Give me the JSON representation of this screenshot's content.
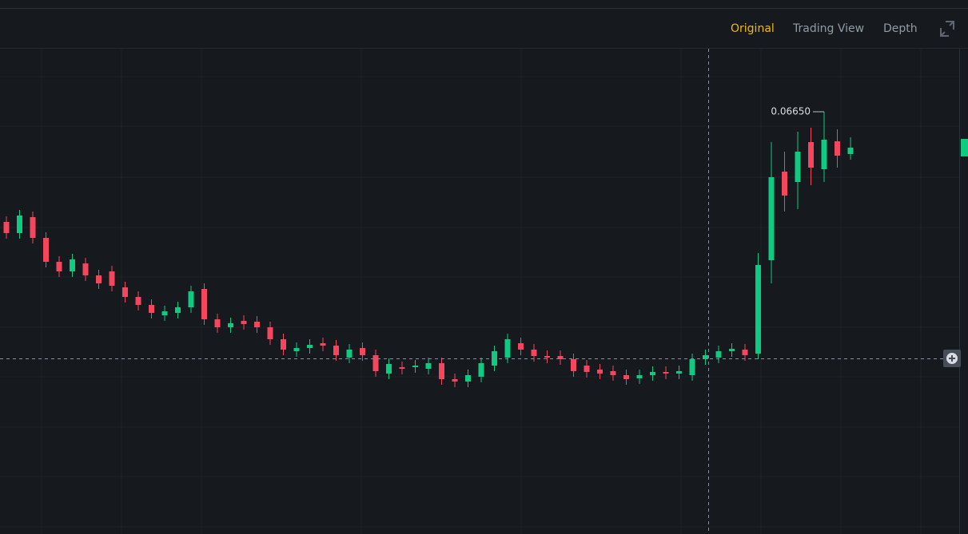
{
  "tabs": [
    "Original",
    "Trading View",
    "Depth"
  ],
  "chart_data": {
    "type": "candlestick",
    "up_color": "#0ecb81",
    "down_color": "#f6465d",
    "ylim": [
      0.02947,
      0.0721
    ],
    "open": [
      0.05684,
      0.05586,
      0.05726,
      0.05544,
      0.05334,
      0.0525,
      0.0532,
      0.05215,
      0.0525,
      0.0511,
      0.05026,
      0.04956,
      0.04865,
      0.04886,
      0.04935,
      0.05096,
      0.0483,
      0.0476,
      0.04816,
      0.04809,
      0.0476,
      0.04655,
      0.0455,
      0.04578,
      0.0462,
      0.04599,
      0.04494,
      0.04578,
      0.04515,
      0.04354,
      0.0441,
      0.0441,
      0.04396,
      0.04445,
      0.04305,
      0.04284,
      0.04326,
      0.04424,
      0.04494,
      0.0462,
      0.04564,
      0.04508,
      0.04508,
      0.0448,
      0.04424,
      0.04389,
      0.04375,
      0.0434,
      0.04312,
      0.0434,
      0.04368,
      0.04354,
      0.0434,
      0.0448,
      0.04494,
      0.0455,
      0.04564,
      0.04529,
      0.05348,
      0.06125,
      0.06034,
      0.06384,
      0.06146,
      0.06391,
      0.06279
    ],
    "high": {
      "values": [
        0.05733,
        0.05789,
        0.05775,
        0.05593,
        0.05383,
        0.05404,
        0.05369,
        0.05264,
        0.05299,
        0.05159,
        0.05075,
        0.05005,
        0.04949,
        0.04984,
        0.05124,
        0.05145,
        0.04879,
        0.04844,
        0.04865,
        0.04858,
        0.04809,
        0.04704,
        0.04627,
        0.04655,
        0.04669,
        0.04648,
        0.04613,
        0.04627,
        0.04564,
        0.04487,
        0.04459,
        0.04473,
        0.04494,
        0.04494,
        0.04354,
        0.04389,
        0.04494,
        0.04599,
        0.04704,
        0.04669,
        0.04613,
        0.04557,
        0.04557,
        0.04529,
        0.04473,
        0.04438,
        0.04424,
        0.04389,
        0.04389,
        0.04417,
        0.04417,
        0.04424,
        0.04529,
        0.04564,
        0.04599,
        0.0462,
        0.04613,
        0.05411,
        0.06384,
        0.063,
        0.06475,
        0.0651,
        0.0665,
        0.06496,
        0.06426
      ],
      "value_labels": [
        null,
        null,
        null,
        null,
        null,
        null,
        null,
        null,
        null,
        null,
        null,
        null,
        null,
        null,
        null,
        null,
        null,
        null,
        null,
        null,
        null,
        null,
        null,
        null,
        null,
        null,
        null,
        null,
        null,
        null,
        null,
        null,
        null,
        null,
        null,
        null,
        null,
        null,
        null,
        null,
        null,
        null,
        null,
        null,
        null,
        null,
        null,
        null,
        null,
        null,
        null,
        null,
        null,
        null,
        null,
        null,
        null,
        null,
        null,
        null,
        null,
        null,
        "0.06650",
        null,
        null
      ]
    },
    "low": [
      0.05537,
      0.05537,
      0.05495,
      0.05285,
      0.05201,
      0.05201,
      0.05166,
      0.05096,
      0.05075,
      0.04977,
      0.04907,
      0.04837,
      0.04816,
      0.04837,
      0.04886,
      0.04781,
      0.04711,
      0.04711,
      0.04739,
      0.04711,
      0.04606,
      0.04515,
      0.04501,
      0.04529,
      0.0455,
      0.04466,
      0.04445,
      0.04466,
      0.04326,
      0.04305,
      0.04347,
      0.04361,
      0.04347,
      0.04256,
      0.04235,
      0.04235,
      0.04277,
      0.04375,
      0.04445,
      0.04515,
      0.04459,
      0.04445,
      0.04431,
      0.04326,
      0.04319,
      0.04305,
      0.04291,
      0.04256,
      0.04263,
      0.04291,
      0.04305,
      0.04305,
      0.04291,
      0.04431,
      0.04445,
      0.04501,
      0.04466,
      0.0448,
      0.05145,
      0.05775,
      0.05796,
      0.06006,
      0.06034,
      0.0616,
      0.0623
    ],
    "close": [
      0.05586,
      0.0574,
      0.05544,
      0.05334,
      0.0525,
      0.05355,
      0.05215,
      0.05145,
      0.05124,
      0.05026,
      0.04956,
      0.04886,
      0.049,
      0.04935,
      0.05075,
      0.0483,
      0.0476,
      0.04795,
      0.04788,
      0.0476,
      0.04655,
      0.04564,
      0.04578,
      0.04606,
      0.04599,
      0.04515,
      0.04564,
      0.04515,
      0.04375,
      0.04438,
      0.04396,
      0.04424,
      0.04445,
      0.04305,
      0.04284,
      0.0434,
      0.04445,
      0.0455,
      0.04655,
      0.04564,
      0.04508,
      0.04494,
      0.0448,
      0.04375,
      0.04368,
      0.04354,
      0.0434,
      0.04305,
      0.0434,
      0.04368,
      0.04354,
      0.04375,
      0.0448,
      0.04515,
      0.0455,
      0.04571,
      0.04515,
      0.05306,
      0.06076,
      0.05915,
      0.063,
      0.0616,
      0.06405,
      0.06265,
      0.06335
    ]
  }
}
